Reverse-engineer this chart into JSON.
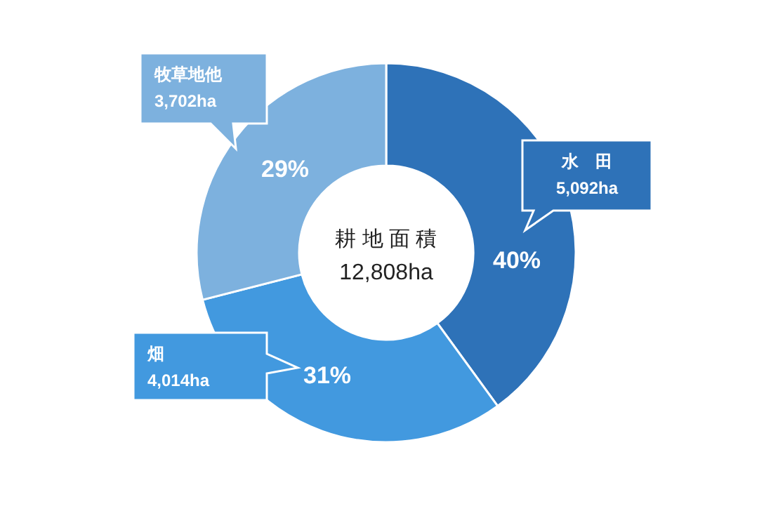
{
  "chart_data": {
    "type": "donut",
    "title": "耕 地 面 積",
    "subtitle": "12,808ha",
    "categories": [
      "水　田",
      "畑",
      "牧草地他"
    ],
    "values": [
      40,
      31,
      29
    ],
    "colors": [
      "#2e72b8",
      "#4299df",
      "#7db1de"
    ],
    "value_labels": [
      "40%",
      "31%",
      "29%"
    ],
    "annotations": [
      "5,092ha",
      "4,014ha",
      "3,702ha"
    ]
  }
}
